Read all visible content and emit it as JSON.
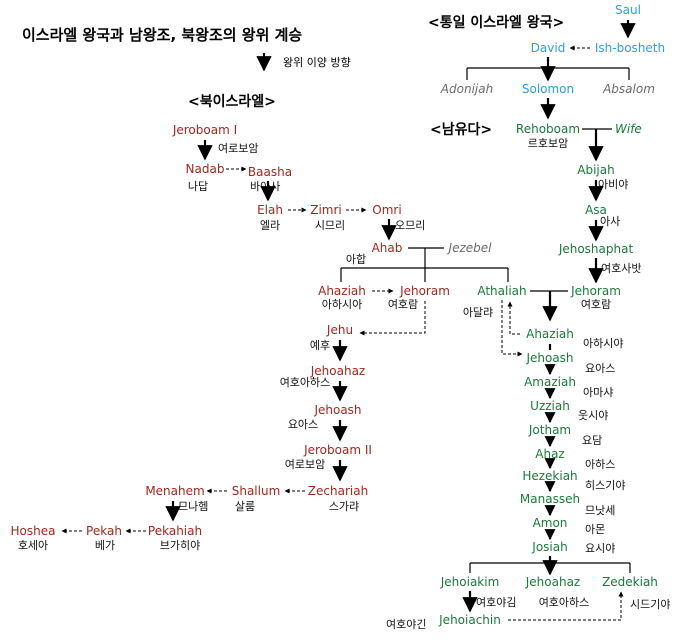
{
  "title": "이스라엘 왕국과  남왕조, 북왕조의 왕위 계승",
  "legend": {
    "label": "왕위 이양 방향"
  },
  "sections": {
    "united": "<통일 이스라엘 왕국>",
    "north": "<북이스라엘>",
    "south": "<남유다>"
  },
  "colors": {
    "north": "#a0281e",
    "south": "#1a7a3a",
    "united": "#2aa0dc",
    "other": "#6b6b6b"
  },
  "united": {
    "saul": "Saul",
    "david": "David",
    "ishbosheth": "Ish-bosheth",
    "adonijah": "Adonijah",
    "solomon": "Solomon",
    "absalom": "Absalom"
  },
  "north": {
    "jeroboam1": "Jeroboam I",
    "jeroboam1_ko": "여로보암",
    "nadab": "Nadab",
    "nadab_ko": "나답",
    "baasha": "Baasha",
    "baasha_ko": "바아사",
    "elah": "Elah",
    "elah_ko": "엘라",
    "zimri": "Zimri",
    "zimri_ko": "시므리",
    "omri": "Omri",
    "omri_ko": "오므리",
    "ahab": "Ahab",
    "ahab_ko": "아합",
    "jezebel": "Jezebel",
    "ahaziah": "Ahaziah",
    "ahaziah_ko": "아하시아",
    "jehoram": "Jehoram",
    "jehoram_ko": "여호람",
    "jehu": "Jehu",
    "jehu_ko": "예후",
    "jehoahaz": "Jehoahaz",
    "jehoahaz_ko": "여호아하스",
    "jehoash": "Jehoash",
    "jehoash_ko": "요아스",
    "jeroboam2": "Jeroboam II",
    "jeroboam2_ko": "여로보암",
    "zechariah": "Zechariah",
    "zechariah_ko": "스가랴",
    "shallum": "Shallum",
    "shallum_ko": "살룸",
    "menahem": "Menahem",
    "menahem_ko": "므나헴",
    "pekahiah": "Pekahiah",
    "pekahiah_ko": "브가히야",
    "pekah": "Pekah",
    "pekah_ko": "베가",
    "hoshea": "Hoshea",
    "hoshea_ko": "호세아"
  },
  "south": {
    "rehoboam": "Rehoboam",
    "rehoboam_ko": "르호보암",
    "wife": "Wife",
    "abijah": "Abijah",
    "abijah_ko": "아비야",
    "asa": "Asa",
    "asa_ko": "아사",
    "jehoshaphat": "Jehoshaphat",
    "jehoshaphat_ko": "여호사밧",
    "athaliah": "Athaliah",
    "athaliah_ko": "아달랴",
    "jehoram": "Jehoram",
    "jehoram_ko": "여호람",
    "ahaziah": "Ahaziah",
    "ahaziah_ko": "아하시야",
    "jehoash": "Jehoash",
    "jehoash_ko": "요아스",
    "amaziah": "Amaziah",
    "amaziah_ko": "아마샤",
    "uzziah": "Uzziah",
    "uzziah_ko": "웃시야",
    "jotham": "Jotham",
    "jotham_ko": "요담",
    "ahaz": "Ahaz",
    "ahaz_ko": "아하스",
    "hezekiah": "Hezekiah",
    "hezekiah_ko": "히스기야",
    "manasseh": "Manasseh",
    "manasseh_ko": "므낫세",
    "amon": "Amon",
    "amon_ko": "아몬",
    "josiah": "Josiah",
    "josiah_ko": "요시야",
    "jehoiakim": "Jehoiakim",
    "jehoiakim_ko": "여호야김",
    "jehoahaz": "Jehoahaz",
    "jehoahaz_ko": "여호아하스",
    "zedekiah": "Zedekiah",
    "zedekiah_ko": "시드기야",
    "jehoiachin": "Jehoiachin",
    "jehoiachin_ko": "여호야긴"
  }
}
